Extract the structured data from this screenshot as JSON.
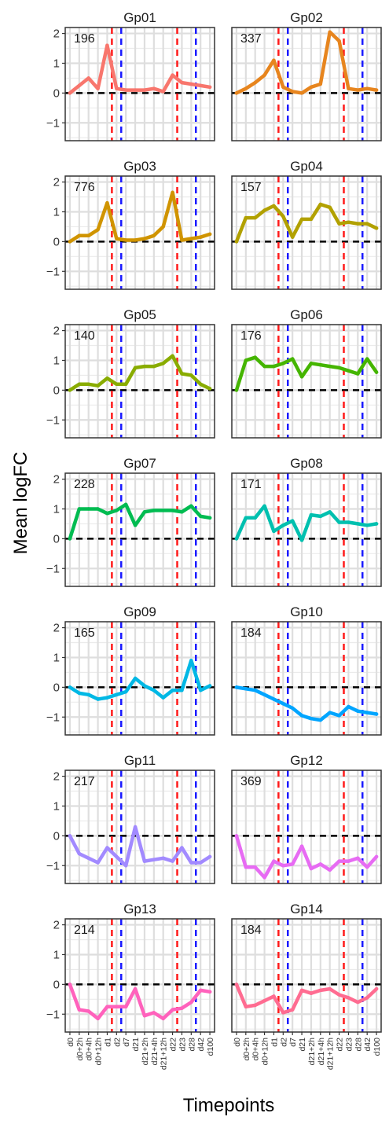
{
  "chart_data": {
    "type": "line",
    "xlabel": "Timepoints",
    "ylabel": "Mean logFC",
    "ylim": [
      -1.6,
      2.2
    ],
    "yticks": [
      -1,
      0,
      1,
      2
    ],
    "x": [
      "d0",
      "d0+2h",
      "d0+4h",
      "d0+12h",
      "d1",
      "d2",
      "d7",
      "d21",
      "d21+2h",
      "d21+4h",
      "d21+12h",
      "d22",
      "d23",
      "d28",
      "d42",
      "d100"
    ],
    "reference_lines": {
      "zero": {
        "y": 0,
        "color": "#000000",
        "style": "dashed"
      },
      "red": {
        "after_index": [
          4,
          11
        ],
        "color": "#ff1a1a",
        "style": "dashed"
      },
      "blue": {
        "after_index": [
          5,
          13
        ],
        "color": "#1a1aff",
        "style": "dashed"
      }
    },
    "panels": [
      {
        "title": "Gp01",
        "count": "196",
        "color": "#F8766D",
        "values": [
          0,
          0.25,
          0.5,
          0.15,
          1.6,
          0.15,
          0.1,
          0.1,
          0.1,
          0.15,
          0.05,
          0.6,
          0.35,
          0.3,
          0.25,
          0.2
        ]
      },
      {
        "title": "Gp02",
        "count": "337",
        "color": "#E7851E",
        "values": [
          0,
          0.15,
          0.35,
          0.6,
          1.1,
          0.2,
          0.05,
          0,
          0.2,
          0.3,
          2.05,
          1.75,
          0.15,
          0.1,
          0.15,
          0.1
        ]
      },
      {
        "title": "Gp03",
        "count": "776",
        "color": "#D09400",
        "values": [
          0,
          0.2,
          0.2,
          0.4,
          1.3,
          0.1,
          0.05,
          0.05,
          0.1,
          0.2,
          0.5,
          1.65,
          0.05,
          0.1,
          0.15,
          0.25
        ]
      },
      {
        "title": "Gp04",
        "count": "157",
        "color": "#B2A100",
        "values": [
          0,
          0.8,
          0.8,
          1.05,
          1.2,
          0.85,
          0.15,
          0.75,
          0.75,
          1.25,
          1.15,
          0.6,
          0.65,
          0.6,
          0.6,
          0.45
        ]
      },
      {
        "title": "Gp05",
        "count": "140",
        "color": "#89AC00",
        "values": [
          0,
          0.2,
          0.2,
          0.15,
          0.4,
          0.2,
          0.2,
          0.75,
          0.8,
          0.8,
          0.9,
          1.15,
          0.55,
          0.5,
          0.2,
          0.05
        ]
      },
      {
        "title": "Gp06",
        "count": "176",
        "color": "#45B500",
        "values": [
          0,
          1.0,
          1.1,
          0.8,
          0.8,
          0.9,
          1.05,
          0.45,
          0.9,
          0.85,
          0.8,
          0.75,
          0.65,
          0.55,
          1.05,
          0.6
        ]
      },
      {
        "title": "Gp07",
        "count": "228",
        "color": "#00BC51",
        "values": [
          0,
          1.0,
          1.0,
          1.0,
          0.85,
          0.95,
          1.15,
          0.45,
          0.9,
          0.95,
          0.95,
          0.95,
          0.9,
          1.1,
          0.75,
          0.7
        ]
      },
      {
        "title": "Gp08",
        "count": "171",
        "color": "#00C0AF",
        "values": [
          0,
          0.7,
          0.7,
          1.1,
          0.25,
          0.45,
          0.6,
          -0.05,
          0.8,
          0.75,
          0.9,
          0.55,
          0.55,
          0.5,
          0.45,
          0.5
        ]
      },
      {
        "title": "Gp09",
        "count": "165",
        "color": "#00B8E5",
        "values": [
          0,
          -0.2,
          -0.25,
          -0.4,
          -0.35,
          -0.25,
          -0.15,
          0.3,
          0.05,
          -0.1,
          -0.35,
          -0.1,
          -0.1,
          0.9,
          -0.1,
          0.05
        ]
      },
      {
        "title": "Gp10",
        "count": "184",
        "color": "#00A5FF",
        "values": [
          0,
          -0.05,
          -0.1,
          -0.25,
          -0.4,
          -0.55,
          -0.7,
          -0.95,
          -1.05,
          -1.1,
          -0.85,
          -0.95,
          -0.65,
          -0.8,
          -0.85,
          -0.9
        ]
      },
      {
        "title": "Gp11",
        "count": "217",
        "color": "#A28AFF",
        "values": [
          0,
          -0.6,
          -0.75,
          -0.9,
          -0.4,
          -0.7,
          -1.0,
          0.3,
          -0.85,
          -0.8,
          -0.75,
          -0.85,
          -0.4,
          -0.9,
          -0.9,
          -0.7
        ]
      },
      {
        "title": "Gp12",
        "count": "369",
        "color": "#E76BF3",
        "values": [
          0,
          -1.05,
          -1.05,
          -1.4,
          -0.85,
          -1.0,
          -0.95,
          -0.35,
          -1.1,
          -0.95,
          -1.15,
          -0.85,
          -0.85,
          -0.75,
          -1.05,
          -0.7
        ]
      },
      {
        "title": "Gp13",
        "count": "214",
        "color": "#FF62BC",
        "values": [
          0,
          -0.85,
          -0.9,
          -1.15,
          -0.75,
          -0.75,
          -0.75,
          -0.15,
          -1.05,
          -0.95,
          -1.15,
          -0.85,
          -0.8,
          -0.6,
          -0.2,
          -0.25
        ]
      },
      {
        "title": "Gp14",
        "count": "184",
        "color": "#FF6C91",
        "values": [
          0,
          -0.75,
          -0.7,
          -0.55,
          -0.4,
          -0.95,
          -0.85,
          -0.2,
          -0.3,
          -0.2,
          -0.15,
          -0.35,
          -0.45,
          -0.6,
          -0.45,
          -0.15
        ]
      }
    ]
  }
}
